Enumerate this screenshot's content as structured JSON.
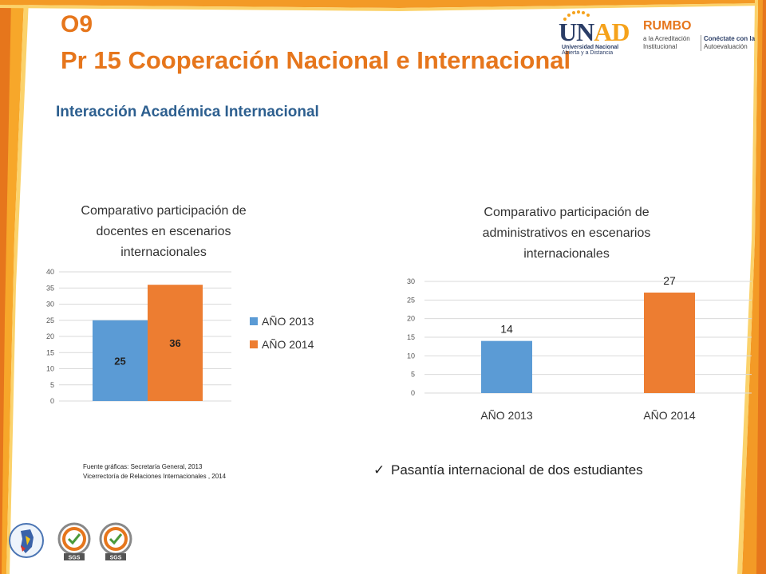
{
  "slide": {
    "code": "O9",
    "title": "Pr 15 Cooperación Nacional e Internacional",
    "subtitle": "Interacción Académica Internacional"
  },
  "logos": {
    "unad_word_u": "U",
    "unad_word_n": "N",
    "unad_word_ad": "AD",
    "unad_line1": "Universidad Nacional",
    "unad_line2": "Abierta y a Distancia",
    "rumbo_word": "RUMBO",
    "rumbo_line1": "a la Acreditación",
    "rumbo_line2": "Institucional",
    "rumbo_line3": "Conéctate con la",
    "rumbo_line4": "Autoevaluación",
    "cert_label": "SGS"
  },
  "colors": {
    "accent_orange": "#e6761c",
    "series_2013": "#5b9bd5",
    "series_2014": "#ed7d31",
    "subtitle_blue": "#2d5f8f"
  },
  "chart_data": [
    {
      "type": "bar",
      "title": "Comparativo participación de docentes en escenarios internacionales",
      "title_lines": [
        "Comparativo participación de",
        "docentes en escenarios",
        "internacionales"
      ],
      "categories": [
        ""
      ],
      "series": [
        {
          "name": "AÑO 2013",
          "values": [
            25
          ]
        },
        {
          "name": "AÑO 2014",
          "values": [
            36
          ]
        }
      ],
      "yticks": [
        "0",
        "5",
        "10",
        "15",
        "20",
        "25",
        "30",
        "35",
        "40"
      ],
      "ylim": [
        0,
        40
      ],
      "grid": true,
      "legend": "right"
    },
    {
      "type": "bar",
      "title": "Comparativo participación de administrativos en escenarios internacionales",
      "title_lines": [
        "Comparativo participación de",
        "administrativos en escenarios",
        "internacionales"
      ],
      "categories": [
        "AÑO 2013",
        "AÑO 2014"
      ],
      "values": [
        14,
        27
      ],
      "yticks": [
        "0",
        "5",
        "10",
        "15",
        "20",
        "25",
        "30"
      ],
      "ylim": [
        0,
        30
      ],
      "grid": true,
      "legend": "none"
    }
  ],
  "source": {
    "line1": "Fuente gráficas: Secretaría General, 2013",
    "line2": "Vicerrectoría de Relaciones Internacionales , 2014"
  },
  "bullet": {
    "check": "✓",
    "text": "Pasantía internacional de dos estudiantes"
  }
}
